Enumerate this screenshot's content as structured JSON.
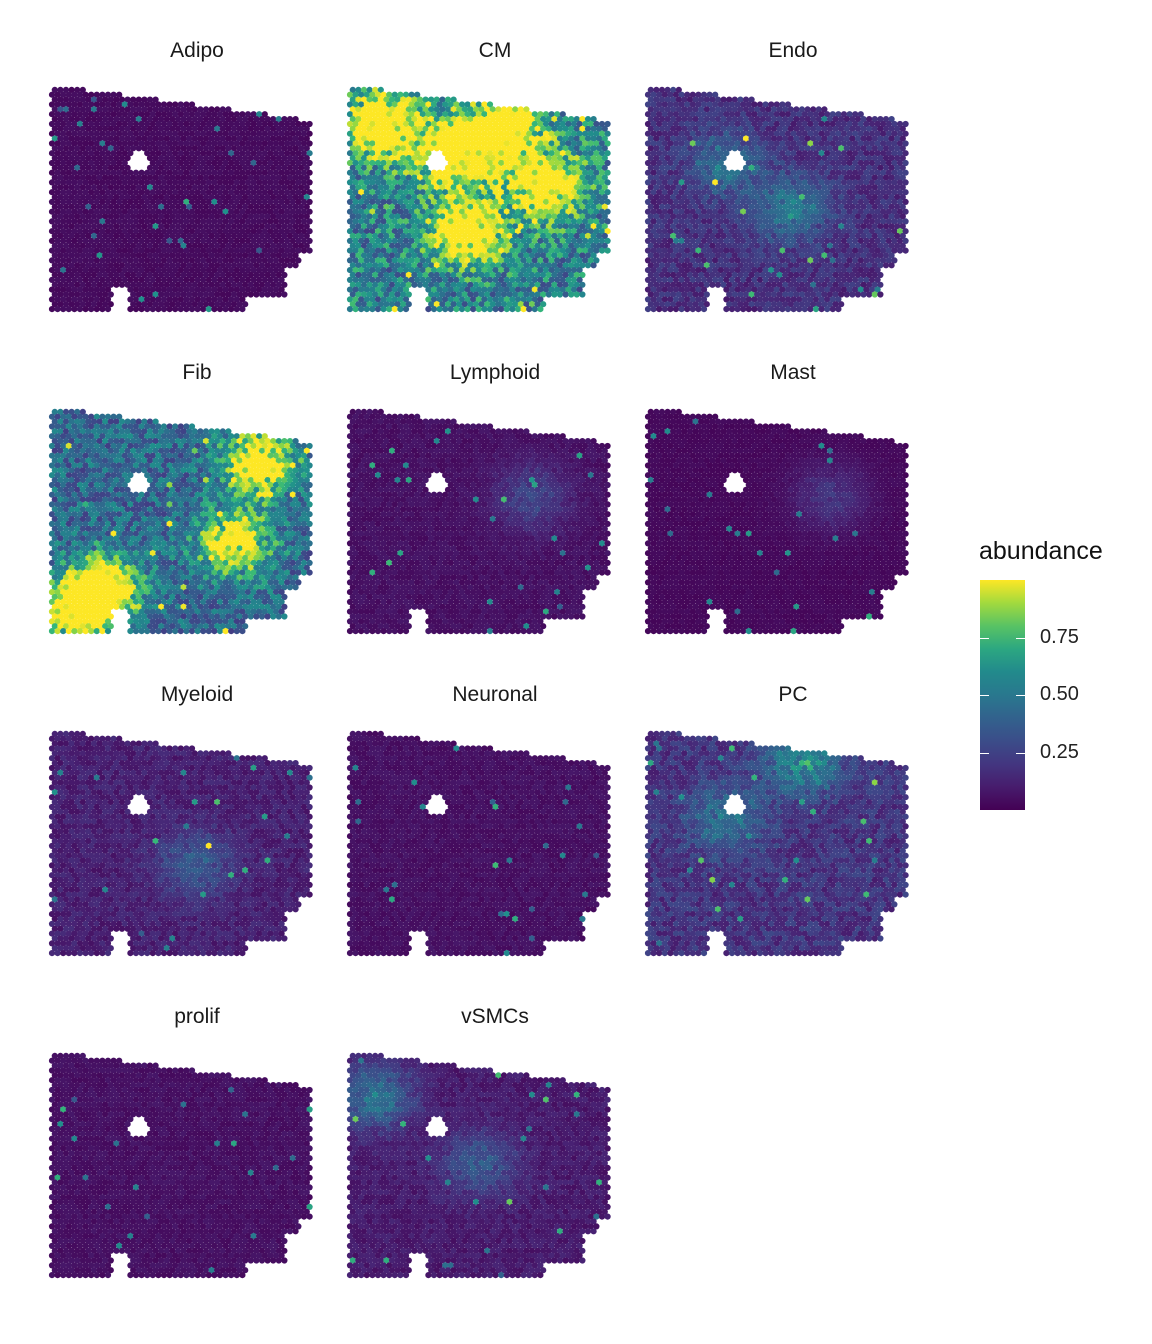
{
  "chart_data": {
    "type": "heatmap",
    "description_panels": "small multiples of spatial spot maps, one per cell type",
    "panels": [
      {
        "title": "Adipo",
        "mean": 0.04,
        "hotspots": []
      },
      {
        "title": "CM",
        "mean": 0.55,
        "hotspots": [
          [
            0.12,
            0.18,
            0.95
          ],
          [
            0.4,
            0.3,
            0.95
          ],
          [
            0.45,
            0.65,
            0.95
          ],
          [
            0.75,
            0.45,
            0.9
          ],
          [
            0.6,
            0.2,
            0.85
          ]
        ]
      },
      {
        "title": "Endo",
        "mean": 0.18,
        "hotspots": [
          [
            0.55,
            0.55,
            0.4
          ],
          [
            0.3,
            0.35,
            0.35
          ]
        ]
      },
      {
        "title": "Fib",
        "mean": 0.45,
        "hotspots": [
          [
            0.8,
            0.25,
            0.9
          ],
          [
            0.2,
            0.8,
            0.85
          ],
          [
            0.7,
            0.6,
            0.8
          ],
          [
            0.1,
            0.9,
            0.9
          ]
        ]
      },
      {
        "title": "Lymphoid",
        "mean": 0.06,
        "hotspots": [
          [
            0.7,
            0.4,
            0.25
          ]
        ]
      },
      {
        "title": "Mast",
        "mean": 0.03,
        "hotspots": [
          [
            0.7,
            0.4,
            0.2
          ]
        ]
      },
      {
        "title": "Myeloid",
        "mean": 0.12,
        "hotspots": [
          [
            0.55,
            0.6,
            0.3
          ]
        ]
      },
      {
        "title": "Neuronal",
        "mean": 0.06,
        "hotspots": []
      },
      {
        "title": "PC",
        "mean": 0.2,
        "hotspots": [
          [
            0.6,
            0.15,
            0.5
          ],
          [
            0.3,
            0.4,
            0.35
          ]
        ]
      },
      {
        "title": "prolif",
        "mean": 0.06,
        "hotspots": []
      },
      {
        "title": "vSMCs",
        "mean": 0.1,
        "hotspots": [
          [
            0.1,
            0.2,
            0.45
          ],
          [
            0.5,
            0.5,
            0.3
          ]
        ]
      }
    ],
    "colorscale": "viridis",
    "legend": {
      "title": "abundance",
      "ticks": [
        0.25,
        0.5,
        0.75
      ],
      "tick_labels": [
        "0.25",
        "0.50",
        "0.75"
      ],
      "range": [
        0.0,
        1.0
      ],
      "placement": "right"
    },
    "colors": {
      "low": "#440154",
      "mid": "#21908c",
      "high": "#fde725"
    }
  }
}
